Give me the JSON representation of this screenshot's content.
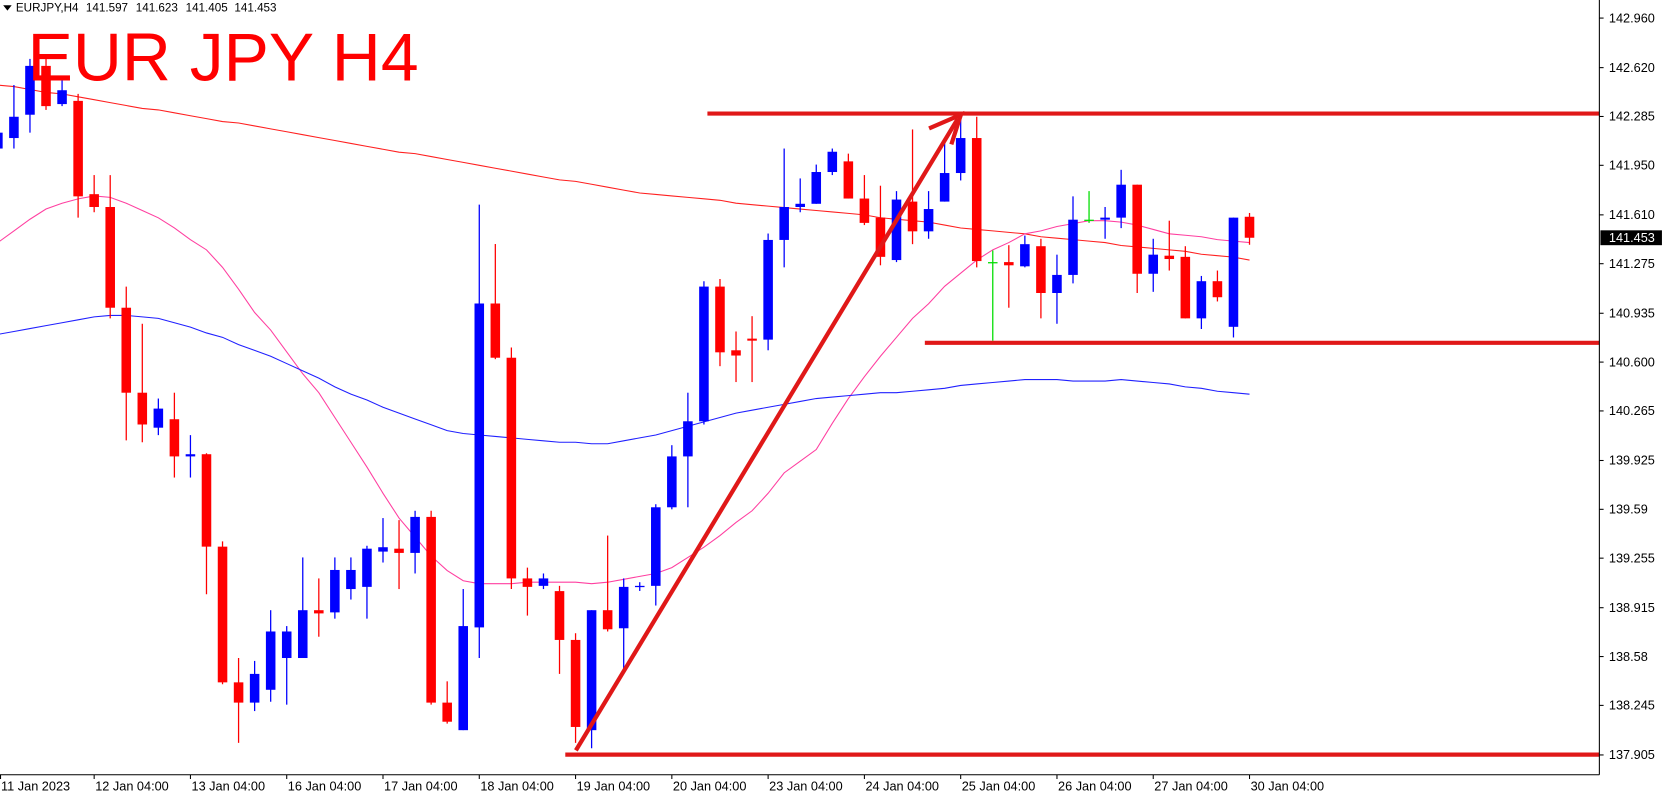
{
  "chart_data": {
    "type": "candlestick",
    "title": "EUR JPY H4",
    "symbol": "EURJPY,H4",
    "up_color": "#0000ff",
    "down_color": "#ff0000",
    "doji_color": "#00dd00",
    "categories": [
      "11 Jan 2023",
      null,
      null,
      null,
      null,
      null,
      "12 Jan 04:00",
      null,
      null,
      null,
      null,
      null,
      "13 Jan 04:00",
      null,
      null,
      null,
      null,
      null,
      "16 Jan 04:00",
      null,
      null,
      null,
      null,
      null,
      "17 Jan 04:00",
      null,
      null,
      null,
      null,
      null,
      "18 Jan 04:00",
      null,
      null,
      null,
      null,
      null,
      "19 Jan 04:00",
      null,
      null,
      null,
      null,
      null,
      "20 Jan 04:00",
      null,
      null,
      null,
      null,
      null,
      "23 Jan 04:00",
      null,
      null,
      null,
      null,
      null,
      "24 Jan 04:00",
      null,
      null,
      null,
      null,
      null,
      "25 Jan 04:00",
      null,
      null,
      null,
      null,
      null,
      "26 Jan 04:00",
      null,
      null,
      null,
      null,
      null,
      "27 Jan 04:00",
      null,
      null,
      null,
      null,
      null,
      "30 Jan 04:00"
    ],
    "open": [
      142.065,
      142.137,
      142.297,
      142.632,
      142.37,
      142.392,
      141.752,
      141.664,
      140.973,
      140.39,
      140.15,
      140.208,
      139.953,
      139.968,
      139.334,
      138.403,
      138.264,
      138.352,
      138.57,
      138.57,
      138.898,
      138.883,
      139.043,
      139.058,
      139.3,
      139.32,
      139.291,
      139.538,
      138.264,
      138.075,
      138.78,
      141.002,
      140.63,
      139.116,
      139.065,
      139.029,
      138.694,
      138.075,
      138.898,
      138.774,
      139.058,
      139.065,
      139.604,
      139.953,
      140.194,
      141.118,
      140.681,
      140.761,
      140.754,
      141.438,
      141.664,
      141.686,
      141.904,
      141.977,
      141.722,
      141.591,
      141.3,
      141.701,
      141.497,
      141.701,
      141.897,
      142.137,
      141.286,
      141.286,
      141.257,
      141.395,
      141.074,
      141.198,
      141.577,
      141.577,
      141.591,
      141.817,
      141.206,
      141.33,
      141.322,
      140.9,
      141.155,
      140.842,
      141.597
    ],
    "high": [
      142.2,
      142.501,
      142.68,
      142.68,
      142.54,
      142.44,
      141.883,
      141.883,
      141.118,
      140.863,
      140.35,
      140.39,
      140.099,
      139.975,
      139.37,
      138.57,
      138.55,
      138.898,
      138.789,
      139.26,
      139.116,
      139.26,
      139.26,
      139.34,
      139.53,
      139.516,
      139.58,
      139.58,
      138.41,
      139.043,
      141.68,
      141.41,
      140.7,
      139.19,
      139.15,
      139.065,
      138.74,
      138.898,
      139.41,
      139.116,
      139.09,
      139.625,
      140.03,
      140.39,
      141.155,
      141.17,
      140.81,
      140.915,
      141.482,
      142.065,
      141.86,
      141.955,
      142.065,
      142.03,
      141.883,
      141.81,
      141.773,
      142.196,
      141.773,
      142.137,
      142.283,
      142.283,
      141.366,
      141.402,
      141.468,
      141.446,
      141.337,
      141.737,
      141.773,
      141.664,
      141.919,
      141.817,
      141.446,
      141.57,
      141.395,
      141.191,
      141.228,
      141.591,
      141.623
    ],
    "low": [
      142.05,
      142.065,
      142.174,
      142.33,
      142.356,
      141.591,
      141.628,
      140.9,
      140.063,
      140.05,
      140.099,
      139.808,
      139.808,
      139.007,
      138.39,
      137.988,
      138.206,
      138.27,
      138.25,
      138.57,
      138.716,
      138.84,
      138.971,
      138.84,
      139.225,
      139.043,
      139.15,
      138.25,
      138.12,
      138.075,
      138.57,
      140.62,
      139.043,
      138.861,
      139.043,
      138.461,
      137.988,
      137.951,
      138.752,
      138.497,
      139.03,
      138.93,
      139.59,
      139.604,
      140.172,
      140.572,
      140.463,
      140.463,
      140.681,
      141.25,
      141.628,
      141.686,
      141.883,
      141.722,
      141.54,
      141.264,
      141.286,
      141.409,
      141.446,
      141.701,
      141.846,
      141.25,
      140.747,
      140.973,
      141.25,
      140.9,
      140.863,
      141.14,
      141.555,
      141.446,
      141.519,
      141.074,
      141.082,
      141.228,
      140.9,
      140.827,
      141.016,
      140.769,
      141.405
    ],
    "close": [
      142.174,
      142.283,
      142.632,
      142.356,
      142.465,
      141.737,
      141.664,
      140.973,
      140.39,
      140.172,
      140.281,
      139.953,
      139.968,
      139.334,
      138.403,
      138.264,
      138.461,
      138.752,
      138.752,
      138.898,
      138.876,
      139.174,
      139.174,
      139.32,
      139.33,
      139.291,
      139.538,
      138.264,
      138.133,
      138.789,
      141.002,
      140.63,
      139.116,
      139.058,
      139.116,
      138.694,
      138.097,
      138.898,
      138.767,
      139.058,
      139.065,
      139.604,
      139.953,
      140.194,
      141.118,
      140.667,
      140.645,
      140.747,
      141.438,
      141.664,
      141.686,
      141.904,
      142.043,
      141.722,
      141.555,
      141.322,
      141.715,
      141.497,
      141.65,
      141.897,
      142.137,
      141.293,
      141.286,
      141.264,
      141.409,
      141.074,
      141.198,
      141.577,
      141.577,
      141.591,
      141.817,
      141.206,
      141.337,
      141.307,
      140.9,
      141.155,
      141.045,
      141.591,
      141.453
    ],
    "overlays": [
      {
        "color": "#ff2020",
        "values": [
          142.5,
          142.49,
          142.47,
          142.45,
          142.44,
          142.42,
          142.4,
          142.38,
          142.36,
          142.34,
          142.33,
          142.31,
          142.29,
          142.27,
          142.25,
          142.24,
          142.22,
          142.2,
          142.18,
          142.16,
          142.14,
          142.12,
          142.1,
          142.08,
          142.06,
          142.04,
          142.03,
          142.01,
          141.99,
          141.97,
          141.95,
          141.93,
          141.91,
          141.89,
          141.87,
          141.85,
          141.84,
          141.82,
          141.8,
          141.78,
          141.76,
          141.75,
          141.74,
          141.73,
          141.72,
          141.71,
          141.69,
          141.68,
          141.67,
          141.66,
          141.65,
          141.64,
          141.63,
          141.62,
          141.61,
          141.59,
          141.58,
          141.57,
          141.56,
          141.54,
          141.52,
          141.51,
          141.5,
          141.49,
          141.48,
          141.46,
          141.45,
          141.44,
          141.43,
          141.42,
          141.4,
          141.39,
          141.38,
          141.37,
          141.36,
          141.34,
          141.33,
          141.32,
          141.3
        ]
      },
      {
        "color": "#ff3fa0",
        "values": [
          141.42,
          141.5,
          141.58,
          141.65,
          141.69,
          141.72,
          141.74,
          141.73,
          141.69,
          141.64,
          141.59,
          141.52,
          141.44,
          141.37,
          141.25,
          141.1,
          140.94,
          140.82,
          140.67,
          140.52,
          140.39,
          140.22,
          140.05,
          139.88,
          139.7,
          139.53,
          139.4,
          139.27,
          139.17,
          139.1,
          139.08,
          139.08,
          139.08,
          139.09,
          139.09,
          139.09,
          139.09,
          139.08,
          139.09,
          139.11,
          139.13,
          139.15,
          139.19,
          139.26,
          139.33,
          139.41,
          139.5,
          139.58,
          139.7,
          139.84,
          139.92,
          140.0,
          140.18,
          140.35,
          140.5,
          140.64,
          140.77,
          140.9,
          141.0,
          141.12,
          141.21,
          141.3,
          141.37,
          141.42,
          141.48,
          141.5,
          141.53,
          141.55,
          141.57,
          141.57,
          141.56,
          141.54,
          141.51,
          141.48,
          141.47,
          141.46,
          141.44,
          141.43,
          141.42
        ]
      },
      {
        "color": "#2020ff",
        "values": [
          140.79,
          140.81,
          140.83,
          140.85,
          140.87,
          140.89,
          140.91,
          140.92,
          140.92,
          140.91,
          140.9,
          140.87,
          140.84,
          140.8,
          140.77,
          140.72,
          140.68,
          140.64,
          140.59,
          140.54,
          140.49,
          140.43,
          140.38,
          140.34,
          140.29,
          140.25,
          140.21,
          140.17,
          140.13,
          140.11,
          140.1,
          140.09,
          140.08,
          140.07,
          140.06,
          140.05,
          140.05,
          140.04,
          140.04,
          140.06,
          140.08,
          140.1,
          140.13,
          140.16,
          140.19,
          140.22,
          140.25,
          140.27,
          140.29,
          140.31,
          140.33,
          140.35,
          140.36,
          140.37,
          140.38,
          140.39,
          140.39,
          140.4,
          140.41,
          140.42,
          140.44,
          140.45,
          140.46,
          140.47,
          140.48,
          140.48,
          140.48,
          140.47,
          140.47,
          140.47,
          140.48,
          140.47,
          140.46,
          140.45,
          140.43,
          140.42,
          140.4,
          140.39,
          140.38
        ]
      }
    ],
    "ylim": [
      137.769,
      143.084
    ],
    "yticks": [
      {
        "value": 142.96,
        "label": "142.960"
      },
      {
        "value": 142.62,
        "label": "142.620"
      },
      142.285,
      {
        "value": 141.95,
        "label": "141.950"
      },
      {
        "value": 141.61,
        "label": "141.610"
      },
      141.275,
      140.935,
      {
        "value": 140.6,
        "label": "140.600"
      },
      140.265,
      139.925,
      139.59,
      139.255,
      138.915,
      138.58,
      138.245,
      137.905
    ]
  }
}
